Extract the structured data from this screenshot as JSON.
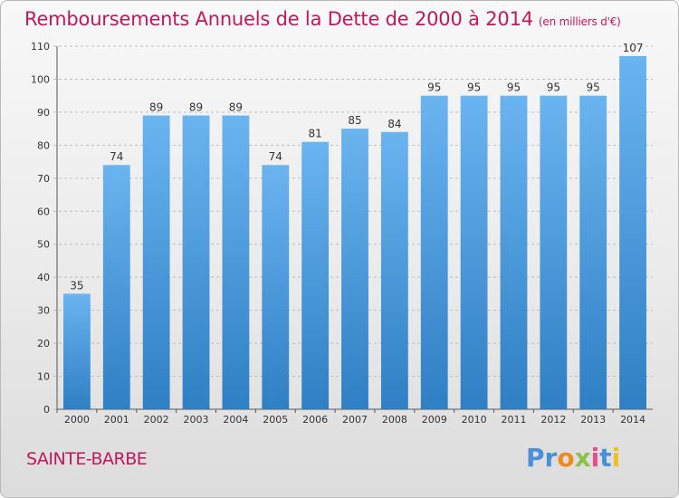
{
  "title": "Remboursements Annuels de la Dette de 2000 à 2014",
  "subtitle": "(en milliers d'€)",
  "commune": "SAINTE-BARBE",
  "logo": {
    "letters": [
      "P",
      "r",
      "o",
      "x",
      "i",
      "t",
      "i"
    ],
    "colors": [
      "#4a90d9",
      "#4a90d9",
      "#f08a1c",
      "#8bc34a",
      "#e84c8a",
      "#4a90d9",
      "#f0c020"
    ]
  },
  "colors": {
    "bar_light": "#6ab4f0",
    "bar_dark": "#2f7fc4",
    "title": "#c0185a"
  },
  "chart_data": {
    "type": "bar",
    "categories": [
      "2000",
      "2001",
      "2002",
      "2003",
      "2004",
      "2005",
      "2006",
      "2007",
      "2008",
      "2009",
      "2010",
      "2011",
      "2012",
      "2013",
      "2014"
    ],
    "values": [
      35,
      74,
      89,
      89,
      89,
      74,
      81,
      85,
      84,
      95,
      95,
      95,
      95,
      95,
      107
    ],
    "ylim": [
      0,
      110
    ],
    "yticks": [
      0,
      10,
      20,
      30,
      40,
      50,
      60,
      70,
      80,
      90,
      100,
      110
    ],
    "grid": true,
    "xlabel": "",
    "ylabel": ""
  }
}
